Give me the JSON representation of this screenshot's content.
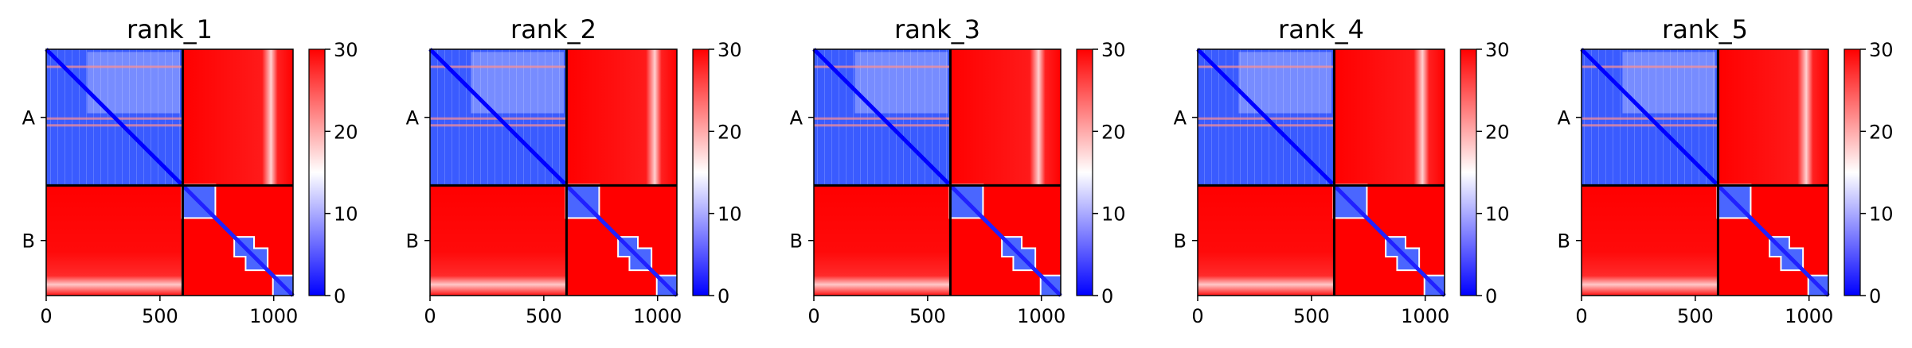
{
  "figure": {
    "colormap": [
      "#0000ff",
      "#ffffff",
      "#ff0000"
    ],
    "chain_labels": [
      "A",
      "B"
    ],
    "chain_boundary": 600,
    "total_length": 1085,
    "x_ticks": [
      0,
      500,
      1000
    ],
    "colorbar_ticks": [
      0,
      10,
      20,
      30
    ]
  },
  "chart_data": [
    {
      "type": "heatmap",
      "title": "rank_1",
      "x_range": [
        0,
        1085
      ],
      "ytick_labels": [
        "A",
        "B"
      ],
      "chain_boundary": 600,
      "color_range": [
        0,
        30
      ],
      "colorbar_ticks": [
        0,
        10,
        20,
        30
      ],
      "xticks": [
        0,
        500,
        1000
      ]
    },
    {
      "type": "heatmap",
      "title": "rank_2",
      "x_range": [
        0,
        1085
      ],
      "ytick_labels": [
        "A",
        "B"
      ],
      "chain_boundary": 600,
      "color_range": [
        0,
        30
      ],
      "colorbar_ticks": [
        0,
        10,
        20,
        30
      ],
      "xticks": [
        0,
        500,
        1000
      ]
    },
    {
      "type": "heatmap",
      "title": "rank_3",
      "x_range": [
        0,
        1085
      ],
      "ytick_labels": [
        "A",
        "B"
      ],
      "chain_boundary": 600,
      "color_range": [
        0,
        30
      ],
      "colorbar_ticks": [
        0,
        10,
        20,
        30
      ],
      "xticks": [
        0,
        500,
        1000
      ]
    },
    {
      "type": "heatmap",
      "title": "rank_4",
      "x_range": [
        0,
        1085
      ],
      "ytick_labels": [
        "A",
        "B"
      ],
      "chain_boundary": 600,
      "color_range": [
        0,
        30
      ],
      "colorbar_ticks": [
        0,
        10,
        20,
        30
      ],
      "xticks": [
        0,
        500,
        1000
      ]
    },
    {
      "type": "heatmap",
      "title": "rank_5",
      "x_range": [
        0,
        1085
      ],
      "ytick_labels": [
        "A",
        "B"
      ],
      "chain_boundary": 600,
      "color_range": [
        0,
        30
      ],
      "colorbar_ticks": [
        0,
        10,
        20,
        30
      ],
      "xticks": [
        0,
        500,
        1000
      ]
    }
  ]
}
